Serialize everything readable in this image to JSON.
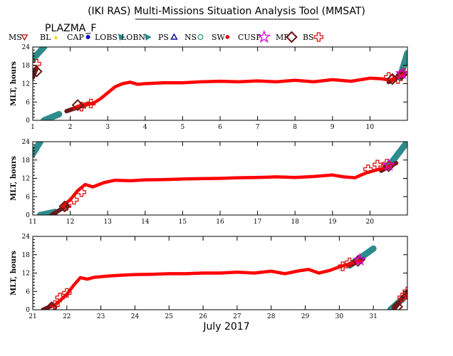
{
  "title": "(IKI RAS) Multi-Missions Situation Analysis Tool (MMSAT)",
  "satellite": "PLAZMA_F",
  "legend": [
    {
      "label": "MS",
      "icon": "triangle-down-icon",
      "color": "#b01010"
    },
    {
      "label": "BL",
      "icon": "star-small-icon",
      "color": "#e8d400"
    },
    {
      "label": "CAP",
      "icon": "dot-icon",
      "color": "#1010c0"
    },
    {
      "label": "LOBS",
      "icon": "wedge-icon",
      "color": "#2e8b8b"
    },
    {
      "label": "LOBN",
      "icon": "wedge-icon",
      "color": "#2e8b8b"
    },
    {
      "label": "PS",
      "icon": "triangle-up-icon",
      "color": "#101090"
    },
    {
      "label": "NS",
      "icon": "circle-icon",
      "color": "#1a9a6a"
    },
    {
      "label": "SW",
      "icon": "asterisk-icon",
      "color": "#e00000"
    },
    {
      "label": "CUSP",
      "icon": "star-icon",
      "color": "#e000e0"
    },
    {
      "label": "MP",
      "icon": "diamond-icon",
      "color": "#6a1010"
    },
    {
      "label": "BS",
      "icon": "cross-icon",
      "color": "#e01010"
    }
  ],
  "xlabel": "July 2017",
  "ylabel": "MLT, hours",
  "colors": {
    "sw": "#ff0000",
    "lobe": "#2e8b8b",
    "mp": "#6a1a1a",
    "bs": "#e01010",
    "cusp": "#e000e0",
    "cap": "#1010c0",
    "bl": "#e8d400"
  },
  "chart_data": [
    {
      "type": "line",
      "xlim": [
        1,
        11
      ],
      "ylim": [
        0,
        24
      ],
      "xticks": [
        "1",
        "2",
        "3",
        "4",
        "5",
        "6",
        "7",
        "8",
        "9",
        "10"
      ],
      "yticks": [
        "0",
        "6",
        "12",
        "18",
        "24"
      ],
      "sw": [
        [
          2.1,
          4
        ],
        [
          2.3,
          5
        ],
        [
          2.6,
          5.5
        ],
        [
          2.8,
          7
        ],
        [
          3.0,
          9
        ],
        [
          3.2,
          11
        ],
        [
          3.4,
          12
        ],
        [
          3.6,
          12.5
        ],
        [
          3.8,
          11.8
        ],
        [
          4.0,
          12
        ],
        [
          4.5,
          12.3
        ],
        [
          5,
          12.3
        ],
        [
          5.5,
          12.6
        ],
        [
          6,
          12.8
        ],
        [
          6.5,
          12.6
        ],
        [
          7,
          12.9
        ],
        [
          7.5,
          12.6
        ],
        [
          8,
          13.1
        ],
        [
          8.5,
          12.6
        ],
        [
          9,
          13.3
        ],
        [
          9.5,
          12.8
        ],
        [
          10,
          13.8
        ],
        [
          10.3,
          13.6
        ],
        [
          10.6,
          13
        ],
        [
          10.9,
          15
        ]
      ],
      "lobe": [
        [
          [
            1,
            20
          ],
          [
            1.3,
            24
          ]
        ],
        [
          [
            1.3,
            0
          ],
          [
            1.7,
            2
          ]
        ],
        [
          [
            10.8,
            14
          ],
          [
            11,
            22
          ]
        ]
      ],
      "mp": [
        [
          [
            1,
            14
          ],
          [
            1.1,
            17
          ]
        ],
        [
          [
            1.9,
            3
          ],
          [
            2.5,
            5.5
          ]
        ],
        [
          [
            10.5,
            12.5
          ],
          [
            10.9,
            15.5
          ]
        ]
      ],
      "bs": [
        [
          1.1,
          18.5
        ],
        [
          2.3,
          4.5
        ],
        [
          2.55,
          5.5
        ],
        [
          10.5,
          14.2
        ],
        [
          10.75,
          13.5
        ],
        [
          10.9,
          15.5
        ]
      ],
      "diamonds": [
        [
          1.1,
          16
        ],
        [
          2.2,
          5
        ],
        [
          10.6,
          13.5
        ],
        [
          10.85,
          15
        ]
      ],
      "cusp": [
        [
          10.85,
          15.3
        ]
      ]
    },
    {
      "type": "line",
      "xlim": [
        11,
        21
      ],
      "ylim": [
        0,
        24
      ],
      "xticks": [
        "11",
        "12",
        "13",
        "14",
        "15",
        "16",
        "17",
        "18",
        "19",
        "20"
      ],
      "yticks": [
        "0",
        "6",
        "12",
        "18",
        "24"
      ],
      "sw": [
        [
          11.8,
          3
        ],
        [
          12.0,
          5
        ],
        [
          12.2,
          8
        ],
        [
          12.4,
          10
        ],
        [
          12.6,
          9.2
        ],
        [
          12.9,
          10.6
        ],
        [
          13.2,
          11.4
        ],
        [
          13.6,
          11.2
        ],
        [
          14,
          11.5
        ],
        [
          14.5,
          11.6
        ],
        [
          15,
          11.8
        ],
        [
          15.5,
          11.9
        ],
        [
          16,
          12
        ],
        [
          16.5,
          12.2
        ],
        [
          17,
          12.3
        ],
        [
          17.5,
          12.5
        ],
        [
          18,
          12.3
        ],
        [
          18.5,
          12.6
        ],
        [
          19,
          13.1
        ],
        [
          19.3,
          12.5
        ],
        [
          19.6,
          12.2
        ],
        [
          19.9,
          13.8
        ],
        [
          20.1,
          14.5
        ],
        [
          20.4,
          15.5
        ],
        [
          20.6,
          16.5
        ]
      ],
      "lobe": [
        [
          [
            11,
            20
          ],
          [
            11.2,
            24
          ]
        ],
        [
          [
            11.2,
            0
          ],
          [
            11.6,
            1
          ]
        ],
        [
          [
            20.5,
            16
          ],
          [
            21,
            24
          ]
        ]
      ],
      "mp": [
        [
          [
            11.5,
            0
          ],
          [
            11.9,
            3
          ]
        ],
        [
          [
            20.3,
            14.5
          ],
          [
            20.7,
            17
          ]
        ]
      ],
      "bs": [
        [
          11.9,
          3
        ],
        [
          12.1,
          5
        ],
        [
          12.3,
          7.5
        ],
        [
          19.95,
          15
        ],
        [
          20.2,
          16.5
        ],
        [
          20.45,
          16.8
        ]
      ],
      "diamonds": [
        [
          11.85,
          2.8
        ],
        [
          20.5,
          16
        ]
      ],
      "cusp": [
        [
          20.5,
          16.3
        ]
      ]
    },
    {
      "type": "line",
      "xlim": [
        21,
        32
      ],
      "ylim": [
        0,
        24
      ],
      "xticks": [
        "21",
        "22",
        "23",
        "24",
        "25",
        "26",
        "27",
        "28",
        "29",
        "30",
        "31"
      ],
      "yticks": [
        "0",
        "6",
        "12",
        "18",
        "24"
      ],
      "sw": [
        [
          21.6,
          1
        ],
        [
          21.8,
          3
        ],
        [
          22.0,
          5
        ],
        [
          22.2,
          8
        ],
        [
          22.4,
          10.5
        ],
        [
          22.6,
          10
        ],
        [
          22.8,
          10.6
        ],
        [
          23.2,
          11
        ],
        [
          23.6,
          11.3
        ],
        [
          24,
          11.5
        ],
        [
          24.5,
          11.6
        ],
        [
          25,
          11.8
        ],
        [
          25.5,
          11.8
        ],
        [
          26,
          12
        ],
        [
          26.5,
          12
        ],
        [
          27,
          12.3
        ],
        [
          27.5,
          12
        ],
        [
          28,
          12.6
        ],
        [
          28.4,
          11.8
        ],
        [
          28.8,
          12.7
        ],
        [
          29.1,
          13.2
        ],
        [
          29.4,
          12
        ],
        [
          29.7,
          12.8
        ],
        [
          30,
          14
        ],
        [
          30.3,
          15
        ],
        [
          30.6,
          16
        ]
      ],
      "lobe": [
        [
          [
            30.3,
            14.5
          ],
          [
            31,
            20
          ]
        ],
        [
          [
            31.5,
            0
          ],
          [
            32,
            5
          ]
        ]
      ],
      "mp": [
        [
          [
            21.3,
            0
          ],
          [
            21.6,
            1.5
          ]
        ],
        [
          [
            30.3,
            14.5
          ],
          [
            30.7,
            16.5
          ]
        ],
        [
          [
            31.6,
            0
          ],
          [
            32,
            6
          ]
        ]
      ],
      "bs": [
        [
          21.65,
          1.5
        ],
        [
          21.8,
          4
        ],
        [
          22.0,
          5.5
        ],
        [
          30.1,
          14.2
        ],
        [
          30.3,
          15.5
        ],
        [
          31.85,
          4
        ],
        [
          32,
          6
        ]
      ],
      "diamonds": [
        [
          21.55,
          0.8
        ],
        [
          30.55,
          16
        ],
        [
          31.7,
          1
        ]
      ],
      "cusp": [
        [
          30.6,
          16.3
        ]
      ]
    }
  ]
}
